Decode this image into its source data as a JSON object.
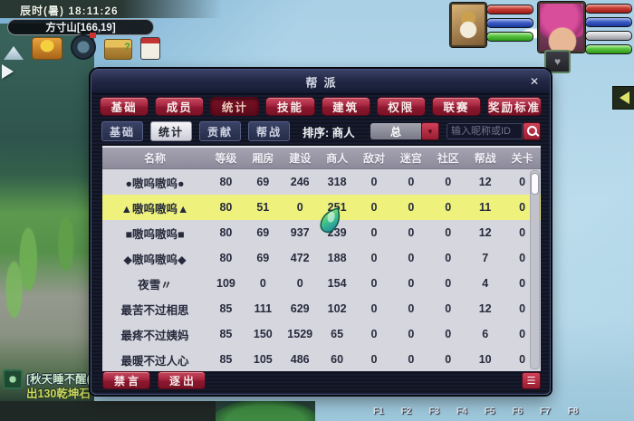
{
  "colors": {
    "accent_red": "#a62640",
    "highlight_row": "#eef27d",
    "table_bg": "#d6d6de",
    "panel_bg": "#10141f"
  },
  "hud": {
    "time_text": "辰时(暑)  18:11:26",
    "location_text": "方寸山[166,19]",
    "toolbar_icons": [
      {
        "name": "mountain-icon"
      },
      {
        "name": "food-icon"
      },
      {
        "name": "compass-icon"
      },
      {
        "name": "treasure-icon"
      },
      {
        "name": "calendar-icon"
      }
    ],
    "chat": {
      "line1": "[秋天睡不醒(",
      "line2": "出130乾坤石"
    },
    "fkeys": [
      "F1",
      "F2",
      "F3",
      "F4",
      "F5",
      "F6",
      "F7",
      "F8"
    ]
  },
  "panel": {
    "title": "帮派",
    "close_glyph": "✕",
    "menu_glyph": "☰",
    "dropdown_glyph": "▼",
    "tabs": [
      {
        "name": "tab-basic",
        "label": "基础",
        "selected": false
      },
      {
        "name": "tab-members",
        "label": "成员",
        "selected": false
      },
      {
        "name": "tab-statistics",
        "label": "统计",
        "selected": true
      },
      {
        "name": "tab-skills",
        "label": "技能",
        "selected": false
      },
      {
        "name": "tab-buildings",
        "label": "建筑",
        "selected": false
      },
      {
        "name": "tab-permissions",
        "label": "权限",
        "selected": false
      },
      {
        "name": "tab-league",
        "label": "联赛",
        "selected": false
      },
      {
        "name": "tab-reward-standard",
        "label": "奖励标准",
        "selected": false
      }
    ],
    "subtabs": [
      {
        "name": "subtab-basic",
        "label": "基础",
        "selected": false
      },
      {
        "name": "subtab-statistics",
        "label": "统计",
        "selected": true
      },
      {
        "name": "subtab-contribution",
        "label": "贡献",
        "selected": false
      },
      {
        "name": "subtab-guild-war",
        "label": "帮战",
        "selected": false
      }
    ],
    "sort_label": "排序: 商人",
    "filter_value": "总",
    "search_placeholder": "输入昵称或ID",
    "table": {
      "columns": [
        "名称",
        "等级",
        "厢房",
        "建设",
        "商人",
        "敌对",
        "迷宫",
        "社区",
        "帮战",
        "关卡"
      ],
      "rows": [
        {
          "name": "●嗷呜嗷呜●",
          "values": [
            "80",
            "69",
            "246",
            "318",
            "0",
            "0",
            "0",
            "12",
            "0"
          ],
          "highlight": false
        },
        {
          "name": "▲嗷呜嗷呜▲",
          "values": [
            "80",
            "51",
            "0",
            "251",
            "0",
            "0",
            "0",
            "11",
            "0"
          ],
          "highlight": true
        },
        {
          "name": "■嗷呜嗷呜■",
          "values": [
            "80",
            "69",
            "937",
            "239",
            "0",
            "0",
            "0",
            "12",
            "0"
          ],
          "highlight": false
        },
        {
          "name": "◆嗷呜嗷呜◆",
          "values": [
            "80",
            "69",
            "472",
            "188",
            "0",
            "0",
            "0",
            "7",
            "0"
          ],
          "highlight": false
        },
        {
          "name": "夜雪〃",
          "values": [
            "109",
            "0",
            "0",
            "154",
            "0",
            "0",
            "0",
            "4",
            "0"
          ],
          "highlight": false
        },
        {
          "name": "最苦不过相思",
          "values": [
            "85",
            "111",
            "629",
            "102",
            "0",
            "0",
            "0",
            "12",
            "0"
          ],
          "highlight": false
        },
        {
          "name": "最疼不过姨妈",
          "values": [
            "85",
            "150",
            "1529",
            "65",
            "0",
            "0",
            "0",
            "6",
            "0"
          ],
          "highlight": false
        },
        {
          "name": "最暖不过人心",
          "values": [
            "85",
            "105",
            "486",
            "60",
            "0",
            "0",
            "0",
            "10",
            "0"
          ],
          "highlight": false
        }
      ]
    },
    "footer_buttons": [
      {
        "name": "mute-button",
        "label": "禁言"
      },
      {
        "name": "expel-button",
        "label": "逐出"
      }
    ]
  }
}
